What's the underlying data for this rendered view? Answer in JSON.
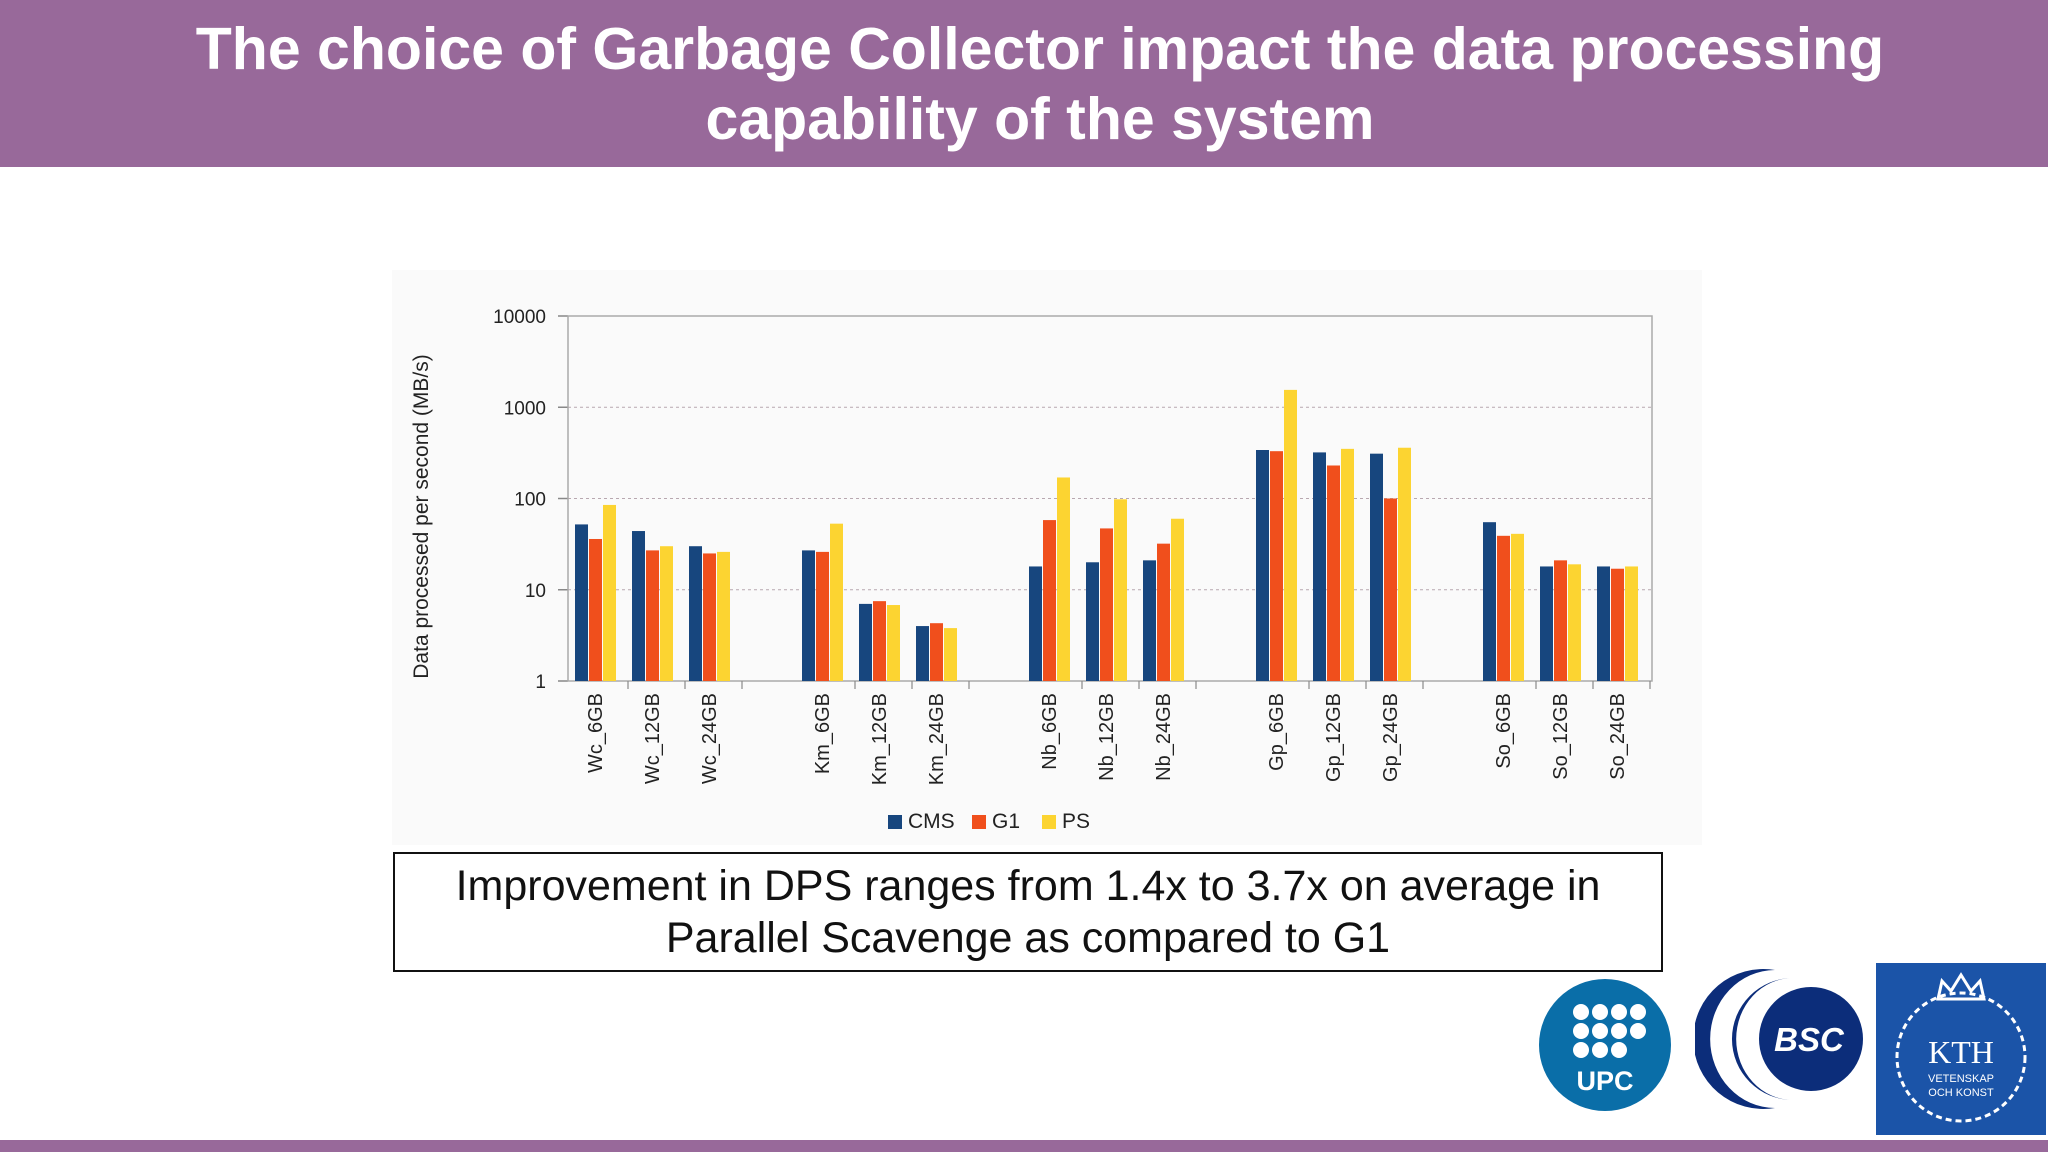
{
  "slide": {
    "title": "The choice of Garbage Collector impact the data processing\ncapability of the system",
    "callout": "Improvement in DPS ranges from 1.4x to 3.7x on average in\nParallel Scavenge as compared to G1",
    "accent_color": "#98699a"
  },
  "logos": [
    {
      "name": "UPC",
      "icon": "upc-logo-icon",
      "color": "#0a6ea8"
    },
    {
      "name": "BSC",
      "icon": "bsc-logo-icon",
      "color": "#0c2d7a"
    },
    {
      "name": "KTH",
      "icon": "kth-logo-icon",
      "color": "#1b54a8",
      "subtitle_line1": "VETENSKAP",
      "subtitle_line2": "OCH KONST"
    }
  ],
  "chart_data": {
    "type": "bar",
    "scale": "log",
    "ylabel": "Data processed per second (MB/s)",
    "xlabel": "",
    "ylim": [
      1,
      10000
    ],
    "yticks": [
      1,
      10,
      100,
      1000,
      10000
    ],
    "ytick_labels": [
      "1",
      "10",
      "100",
      "1000",
      "10000"
    ],
    "grid": "horizontal dashed",
    "legend_position": "bottom",
    "groups": [
      {
        "name": "Wc",
        "categories": [
          "Wc_6GB",
          "Wc_12GB",
          "Wc_24GB"
        ]
      },
      {
        "name": "Km",
        "categories": [
          "Km_6GB",
          "Km_12GB",
          "Km_24GB"
        ]
      },
      {
        "name": "Nb",
        "categories": [
          "Nb_6GB",
          "Nb_12GB",
          "Nb_24GB"
        ]
      },
      {
        "name": "Gp",
        "categories": [
          "Gp_6GB",
          "Gp_12GB",
          "Gp_24GB"
        ]
      },
      {
        "name": "So",
        "categories": [
          "So_6GB",
          "So_12GB",
          "So_24GB"
        ]
      }
    ],
    "series": [
      {
        "name": "CMS",
        "color": "#17467e",
        "values": [
          52,
          44,
          30,
          27,
          7,
          4,
          18,
          20,
          21,
          340,
          320,
          310,
          55,
          18,
          18
        ]
      },
      {
        "name": "G1",
        "color": "#f04f1c",
        "values": [
          36,
          27,
          25,
          26,
          7.5,
          4.3,
          58,
          47,
          32,
          330,
          230,
          100,
          39,
          21,
          17
        ]
      },
      {
        "name": "PS",
        "color": "#fcd431",
        "values": [
          85,
          30,
          26,
          53,
          6.8,
          3.8,
          170,
          98,
          60,
          1550,
          350,
          360,
          41,
          19,
          18
        ]
      }
    ]
  }
}
